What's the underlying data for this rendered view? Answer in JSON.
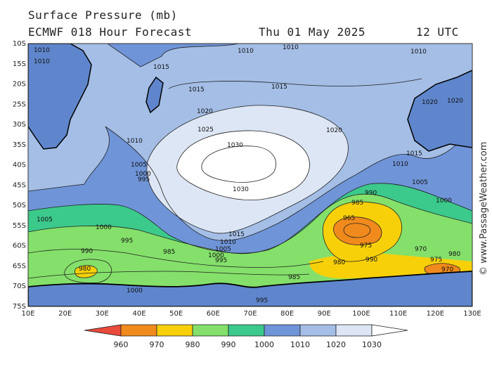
{
  "header": {
    "line1": "Surface Pressure (mb)",
    "line2": "ECMWF 018 Hour Forecast",
    "date": "Thu 01 May 2025",
    "time": "12 UTC"
  },
  "credit": "© www.PassageWeather.com",
  "map": {
    "lat_labels": [
      "10S",
      "15S",
      "20S",
      "25S",
      "30S",
      "35S",
      "40S",
      "45S",
      "50S",
      "55S",
      "60S",
      "65S",
      "70S",
      "75S"
    ],
    "lon_labels": [
      "10E",
      "20E",
      "30E",
      "40E",
      "50E",
      "60E",
      "70E",
      "80E",
      "90E",
      "100E",
      "110E",
      "120E",
      "130E"
    ],
    "contour_labels": [
      "1010",
      "1015",
      "1020",
      "1025",
      "1030",
      "1030",
      "1020",
      "1015",
      "1010",
      "1005",
      "1000",
      "995",
      "990",
      "985",
      "980",
      "975",
      "970",
      "965",
      "1010",
      "1015",
      "1010",
      "1005",
      "1000",
      "995",
      "990",
      "985",
      "980",
      "975",
      "970",
      "1020",
      "1015",
      "1010",
      "1005",
      "1000",
      "1000",
      "995",
      "990",
      "985",
      "980",
      "1010",
      "1010",
      "1015",
      "1020",
      "1010",
      "1005",
      "1000",
      "995"
    ]
  },
  "colorbar": {
    "labels": [
      "960",
      "970",
      "980",
      "990",
      "1000",
      "1010",
      "1020",
      "1030"
    ],
    "colors": [
      "#e84a3c",
      "#f08a1c",
      "#f7d00a",
      "#84e06a",
      "#3cc98c",
      "#6f94d8",
      "#a4bee6",
      "#dde6f4",
      "#ffffff"
    ]
  },
  "colors": {
    "very_high": "#ffffff",
    "high": "#dde6f4",
    "mid_high": "#a4bee6",
    "mid": "#6f94d8",
    "low_teal": "#3cc98c",
    "low_green": "#84e06a",
    "low_yellow": "#f7d00a",
    "low_orange": "#f08a1c"
  }
}
